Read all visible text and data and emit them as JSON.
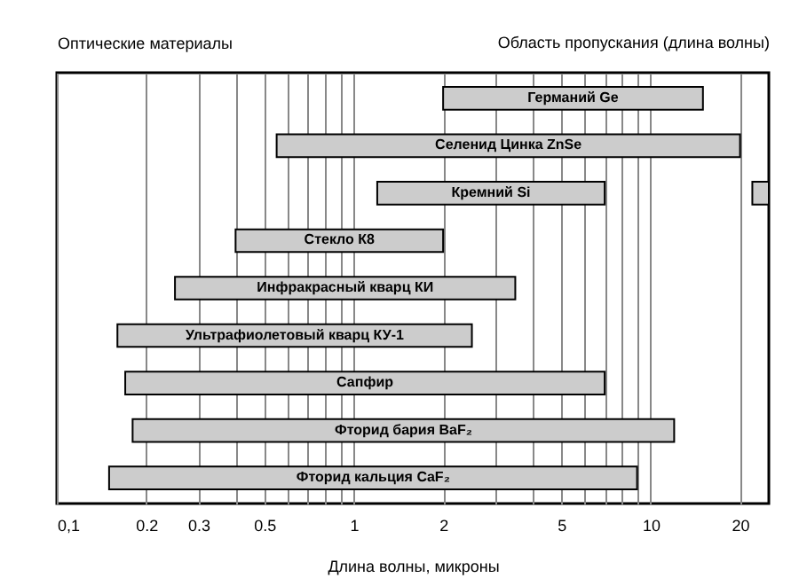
{
  "chart_data": {
    "type": "bar",
    "orientation": "horizontal",
    "title": "Область пропускания (длина волны)",
    "ylabel": "Оптические материалы",
    "xlabel": "Длина волны, микроны",
    "categories": [
      "Германий Ge",
      "Селенид Цинка ZnSe",
      "Кремний Si",
      "Стекло К8",
      "Инфракрасный кварц КИ",
      "Ультрафиолетовый кварц КУ-1",
      "Сапфир",
      "Фторид бария BaF₂",
      "Фторид кальция CaF₂"
    ],
    "series": [
      {
        "color": "#cccccc",
        "base": [
          2,
          0.55,
          1.2,
          0.4,
          0.25,
          0.16,
          0.17,
          0.18,
          0.15
        ],
        "values": [
          13,
          19.45,
          5.8,
          1.6,
          3.25,
          2.34,
          6.83,
          11.82,
          8.85
        ]
      },
      {
        "color": "#cccccc",
        "base": [
          null,
          null,
          22,
          null,
          null,
          null,
          null,
          null,
          null
        ],
        "values": [
          null,
          null,
          3,
          null,
          null,
          null,
          null,
          null,
          null
        ]
      }
    ],
    "log": "x",
    "xlim": [
      0.1,
      25
    ],
    "xticks": [
      {
        "value": 0.1,
        "label": "0,1"
      },
      0.2,
      0.3,
      {
        "value": 0.4,
        "label": null
      },
      0.5,
      {
        "value": 0.6,
        "label": null
      },
      {
        "value": 0.7,
        "label": null
      },
      {
        "value": 0.8,
        "label": null
      },
      {
        "value": 0.9,
        "label": null
      },
      1,
      2,
      {
        "value": 3,
        "label": null
      },
      {
        "value": 4,
        "label": null
      },
      5,
      {
        "value": 6,
        "label": null
      },
      {
        "value": 7,
        "label": null
      },
      {
        "value": 8,
        "label": null
      },
      {
        "value": 9,
        "label": null
      },
      10,
      20
    ],
    "grid": "x",
    "tick_labels": "x"
  }
}
